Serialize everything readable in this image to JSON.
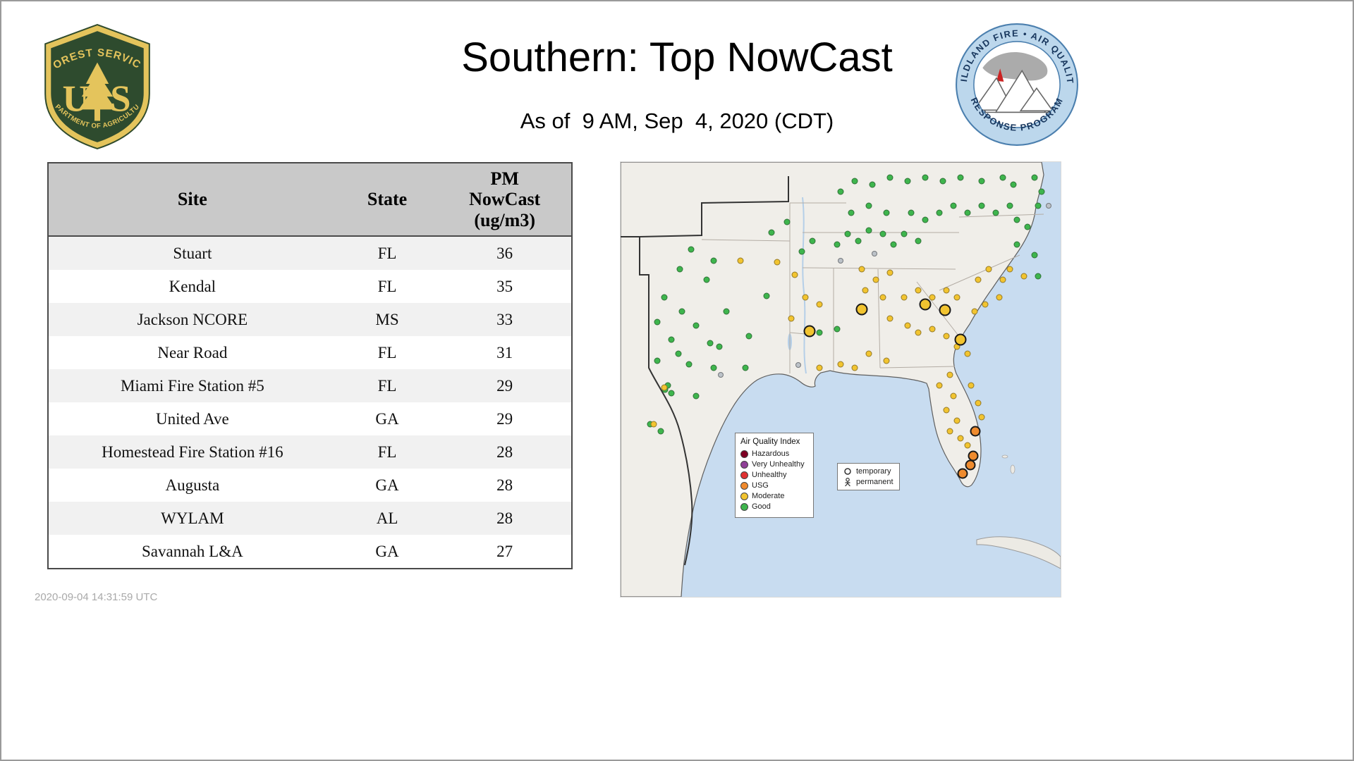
{
  "header": {
    "title": "Southern: Top NowCast",
    "subtitle": "As of  9 AM, Sep  4, 2020 (CDT)",
    "fs_logo": {
      "arc_top": "FOREST SERVICE",
      "letter_u": "U",
      "letter_s": "S",
      "arc_bottom": "DEPARTMENT OF AGRICULTURE"
    },
    "aq_logo": {
      "arc_top": "WILDLAND FIRE • AIR QUALITY",
      "arc_bottom": "RESPONSE PROGRAM"
    }
  },
  "table": {
    "columns": {
      "site": "Site",
      "state": "State",
      "pm": "PM\nNowCast\n(ug/m3)"
    },
    "rows": [
      {
        "site": "Stuart",
        "state": "FL",
        "pm": "36"
      },
      {
        "site": "Kendal",
        "state": "FL",
        "pm": "35"
      },
      {
        "site": "Jackson NCORE",
        "state": "MS",
        "pm": "33"
      },
      {
        "site": "Near Road",
        "state": "FL",
        "pm": "31"
      },
      {
        "site": "Miami Fire Station #5",
        "state": "FL",
        "pm": "29"
      },
      {
        "site": "United Ave",
        "state": "GA",
        "pm": "29"
      },
      {
        "site": "Homestead Fire Station #16",
        "state": "FL",
        "pm": "28"
      },
      {
        "site": "Augusta",
        "state": "GA",
        "pm": "28"
      },
      {
        "site": "WYLAM",
        "state": "AL",
        "pm": "28"
      },
      {
        "site": "Savannah L&A",
        "state": "GA",
        "pm": "27"
      }
    ]
  },
  "footer": {
    "timestamp": "2020-09-04 14:31:59 UTC"
  },
  "map": {
    "legend": {
      "title": "Air Quality Index",
      "items": [
        {
          "label": "Hazardous",
          "color": "#7e0023"
        },
        {
          "label": "Very Unhealthy",
          "color": "#8f3f97"
        },
        {
          "label": "Unhealthy",
          "color": "#e03131"
        },
        {
          "label": "USG",
          "color": "#f08a2d"
        },
        {
          "label": "Moderate",
          "color": "#f2c430"
        },
        {
          "label": "Good",
          "color": "#3eb54d"
        }
      ]
    },
    "marker_legend": {
      "temporary_label": "temporary",
      "permanent_label": "permanent"
    },
    "dot_styles": {
      "g": {
        "name": "good",
        "color": "#3eb54d",
        "size": 9,
        "ring": false
      },
      "y": {
        "name": "moderate",
        "color": "#f2c430",
        "size": 9,
        "ring": false
      },
      "x": {
        "name": "inactive",
        "color": "#bcc2c8",
        "size": 8,
        "ring": false
      },
      "Y": {
        "name": "moderate-large",
        "color": "#f2c430",
        "size": 17,
        "ring": true
      },
      "O": {
        "name": "usg-large",
        "color": "#ef8b2e",
        "size": 15,
        "ring": true
      }
    },
    "dots": [
      [
        100,
        124,
        "g"
      ],
      [
        132,
        140,
        "g"
      ],
      [
        84,
        152,
        "g"
      ],
      [
        122,
        167,
        "g"
      ],
      [
        62,
        192,
        "g"
      ],
      [
        87,
        212,
        "g"
      ],
      [
        52,
        227,
        "g"
      ],
      [
        107,
        232,
        "g"
      ],
      [
        72,
        252,
        "g"
      ],
      [
        127,
        257,
        "g"
      ],
      [
        82,
        272,
        "g"
      ],
      [
        52,
        282,
        "g"
      ],
      [
        97,
        287,
        "g"
      ],
      [
        132,
        292,
        "g"
      ],
      [
        67,
        317,
        "g"
      ],
      [
        63,
        323,
        "g"
      ],
      [
        72,
        328,
        "g"
      ],
      [
        107,
        332,
        "g"
      ],
      [
        42,
        372,
        "g"
      ],
      [
        57,
        382,
        "g"
      ],
      [
        182,
        247,
        "g"
      ],
      [
        177,
        292,
        "g"
      ],
      [
        207,
        190,
        "g"
      ],
      [
        150,
        212,
        "g"
      ],
      [
        140,
        262,
        "g"
      ],
      [
        257,
        127,
        "g"
      ],
      [
        272,
        112,
        "g"
      ],
      [
        307,
        117,
        "g"
      ],
      [
        322,
        102,
        "g"
      ],
      [
        337,
        112,
        "g"
      ],
      [
        352,
        97,
        "g"
      ],
      [
        372,
        102,
        "g"
      ],
      [
        387,
        117,
        "g"
      ],
      [
        402,
        102,
        "g"
      ],
      [
        422,
        112,
        "g"
      ],
      [
        327,
        72,
        "g"
      ],
      [
        352,
        62,
        "g"
      ],
      [
        377,
        72,
        "g"
      ],
      [
        412,
        72,
        "g"
      ],
      [
        432,
        82,
        "g"
      ],
      [
        452,
        72,
        "g"
      ],
      [
        472,
        62,
        "g"
      ],
      [
        492,
        72,
        "g"
      ],
      [
        512,
        62,
        "g"
      ],
      [
        532,
        72,
        "g"
      ],
      [
        552,
        62,
        "g"
      ],
      [
        562,
        82,
        "g"
      ],
      [
        577,
        92,
        "g"
      ],
      [
        592,
        62,
        "g"
      ],
      [
        557,
        32,
        "g"
      ],
      [
        542,
        22,
        "g"
      ],
      [
        512,
        27,
        "g"
      ],
      [
        482,
        22,
        "g"
      ],
      [
        457,
        27,
        "g"
      ],
      [
        432,
        22,
        "g"
      ],
      [
        407,
        27,
        "g"
      ],
      [
        382,
        22,
        "g"
      ],
      [
        357,
        32,
        "g"
      ],
      [
        332,
        27,
        "g"
      ],
      [
        312,
        42,
        "g"
      ],
      [
        587,
        22,
        "g"
      ],
      [
        597,
        42,
        "g"
      ],
      [
        562,
        117,
        "g"
      ],
      [
        587,
        132,
        "g"
      ],
      [
        592,
        162,
        "g"
      ],
      [
        282,
        242,
        "g"
      ],
      [
        307,
        237,
        "g"
      ],
      [
        214,
        100,
        "g"
      ],
      [
        236,
        85,
        "g"
      ],
      [
        170,
        140,
        "y"
      ],
      [
        342,
        152,
        "y"
      ],
      [
        362,
        167,
        "y"
      ],
      [
        382,
        157,
        "y"
      ],
      [
        347,
        182,
        "y"
      ],
      [
        372,
        192,
        "y"
      ],
      [
        402,
        192,
        "y"
      ],
      [
        422,
        182,
        "y"
      ],
      [
        442,
        192,
        "y"
      ],
      [
        462,
        182,
        "y"
      ],
      [
        477,
        192,
        "y"
      ],
      [
        382,
        222,
        "y"
      ],
      [
        407,
        232,
        "y"
      ],
      [
        422,
        242,
        "y"
      ],
      [
        442,
        237,
        "y"
      ],
      [
        462,
        247,
        "y"
      ],
      [
        477,
        262,
        "y"
      ],
      [
        492,
        272,
        "y"
      ],
      [
        507,
        167,
        "y"
      ],
      [
        522,
        152,
        "y"
      ],
      [
        542,
        167,
        "y"
      ],
      [
        552,
        152,
        "y"
      ],
      [
        572,
        162,
        "y"
      ],
      [
        537,
        192,
        "y"
      ],
      [
        517,
        202,
        "y"
      ],
      [
        502,
        212,
        "y"
      ],
      [
        352,
        272,
        "y"
      ],
      [
        377,
        282,
        "y"
      ],
      [
        332,
        292,
        "y"
      ],
      [
        312,
        287,
        "y"
      ],
      [
        282,
        292,
        "y"
      ],
      [
        467,
        302,
        "y"
      ],
      [
        452,
        317,
        "y"
      ],
      [
        472,
        332,
        "y"
      ],
      [
        462,
        352,
        "y"
      ],
      [
        477,
        367,
        "y"
      ],
      [
        467,
        382,
        "y"
      ],
      [
        482,
        392,
        "y"
      ],
      [
        492,
        402,
        "y"
      ],
      [
        507,
        342,
        "y"
      ],
      [
        512,
        362,
        "y"
      ],
      [
        497,
        317,
        "y"
      ],
      [
        262,
        192,
        "y"
      ],
      [
        282,
        202,
        "y"
      ],
      [
        242,
        222,
        "y"
      ],
      [
        62,
        320,
        "y"
      ],
      [
        47,
        372,
        "y"
      ],
      [
        222,
        142,
        "y"
      ],
      [
        247,
        160,
        "y"
      ],
      [
        312,
        140,
        "x"
      ],
      [
        607,
        62,
        "x"
      ],
      [
        252,
        288,
        "x"
      ],
      [
        142,
        302,
        "x"
      ],
      [
        360,
        130,
        "x"
      ],
      [
        342,
        209,
        "Y"
      ],
      [
        432,
        202,
        "Y"
      ],
      [
        460,
        210,
        "Y"
      ],
      [
        268,
        240,
        "Y"
      ],
      [
        482,
        252,
        "Y"
      ],
      [
        503,
        382,
        "O"
      ],
      [
        500,
        417,
        "O"
      ],
      [
        496,
        430,
        "O"
      ],
      [
        485,
        442,
        "O"
      ]
    ]
  }
}
